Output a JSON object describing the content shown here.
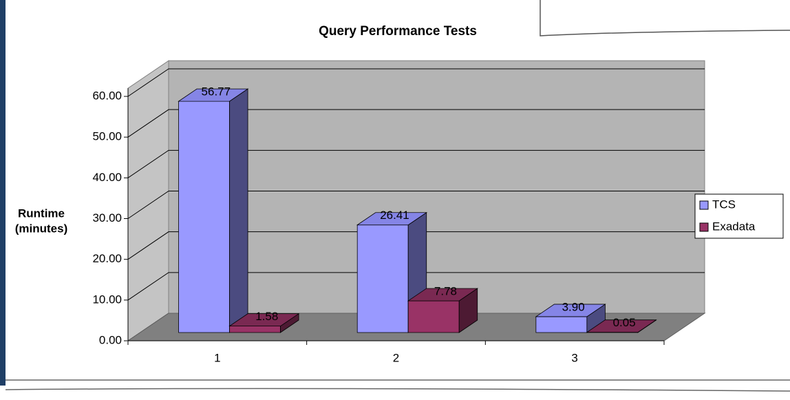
{
  "chart_data": {
    "type": "bar3d",
    "title": "Query Performance Tests",
    "y_label": [
      "Runtime",
      "(minutes)"
    ],
    "categories": [
      "1",
      "2",
      "3"
    ],
    "series": [
      {
        "name": "TCS",
        "color": "#9999ff",
        "side": "#4b4b80",
        "top": "#8585e6",
        "values": [
          56.77,
          26.41,
          3.9
        ],
        "value_labels": [
          "56.77",
          "26.41",
          "3.90"
        ]
      },
      {
        "name": "Exadata",
        "color": "#993366",
        "side": "#4d1a33",
        "top": "#7a2952",
        "values": [
          1.58,
          7.78,
          0.05
        ],
        "value_labels": [
          "1.58",
          "7.78",
          "0.05"
        ]
      }
    ],
    "ylim": [
      0,
      62
    ],
    "yticks": [
      {
        "value": 0,
        "label": "0.00"
      },
      {
        "value": 10,
        "label": "10.00"
      },
      {
        "value": 20,
        "label": "20.00"
      },
      {
        "value": 30,
        "label": "30.00"
      },
      {
        "value": 40,
        "label": "40.00"
      },
      {
        "value": 50,
        "label": "50.00"
      },
      {
        "value": 60,
        "label": "60.00"
      }
    ],
    "grid": true,
    "legend": "right"
  }
}
